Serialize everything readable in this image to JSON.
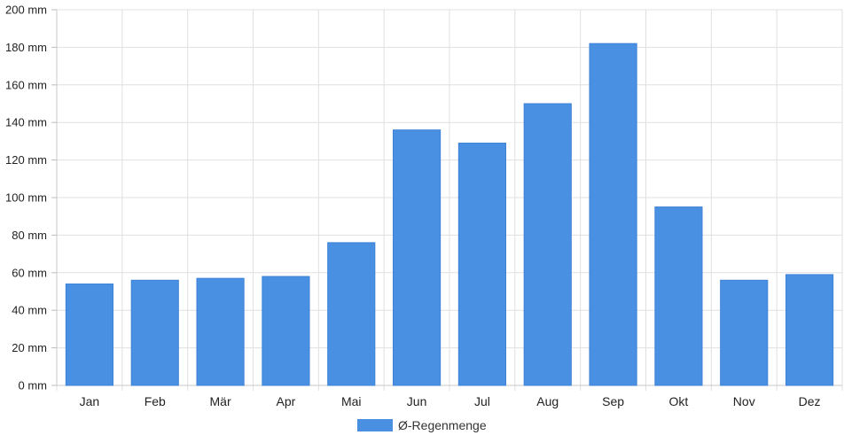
{
  "chart_data": {
    "type": "bar",
    "categories": [
      "Jan",
      "Feb",
      "Mär",
      "Apr",
      "Mai",
      "Jun",
      "Jul",
      "Aug",
      "Sep",
      "Okt",
      "Nov",
      "Dez"
    ],
    "series": [
      {
        "name": "Ø-Regenmenge",
        "values": [
          54,
          56,
          57,
          58,
          76,
          136,
          129,
          150,
          182,
          95,
          56,
          59
        ]
      }
    ],
    "ylim": [
      0,
      200
    ],
    "yticks": [
      0,
      20,
      40,
      60,
      80,
      100,
      120,
      140,
      160,
      180,
      200
    ],
    "y_unit": "mm",
    "grid": true,
    "legend_position": "bottom",
    "colors": {
      "bar": "#4a90e2",
      "grid": "#e0e0e0"
    }
  }
}
